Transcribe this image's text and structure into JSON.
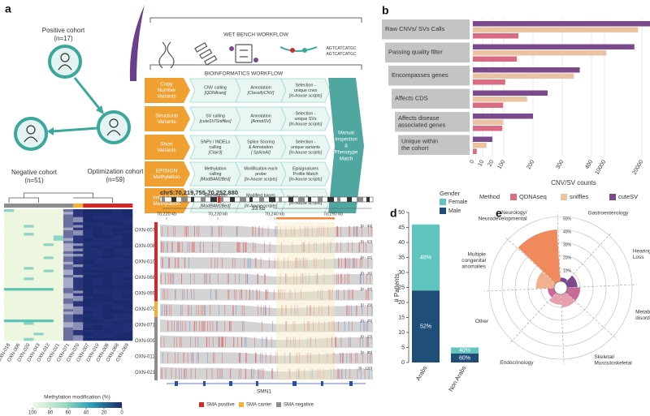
{
  "panel_a": {
    "label": "a",
    "cohorts": [
      {
        "name": "Positive cohort",
        "n": "(n=17)"
      },
      {
        "name": "Negative cohort",
        "n": "(n=51)"
      },
      {
        "name": "Optimization cohort",
        "n": "(n=59)"
      }
    ],
    "wet_bench": "WET BENCH WORKFLOW",
    "sequence": [
      "AGTCATCATGC",
      "AGTCATCATGC"
    ],
    "bioinformatics": "BIOINFORMATICS WORKFLOW",
    "rows": [
      {
        "name": [
          "Copy",
          "Number",
          "Variants"
        ],
        "steps": [
          [
            "CNV calling",
            "[QDNAseq]"
          ],
          [
            "Annotation",
            "[ClassifyCNV]"
          ],
          [
            "Selection -",
            "unique cnvs",
            "[In-house scripts]"
          ]
        ]
      },
      {
        "name": [
          "Structural",
          "Variants"
        ],
        "steps": [
          [
            "SV calling",
            "[cuteSV/Sniffles]"
          ],
          [
            "Annotation",
            "[AnnotSV]"
          ],
          [
            "Selection -",
            "unique SVs",
            "[In-house scripts]"
          ]
        ]
      },
      {
        "name": [
          "Short",
          "Variants"
        ],
        "steps": [
          [
            "SNPs / INDELs",
            "calling",
            "[Clair3]"
          ],
          [
            "Splice Scoring",
            "& Annotation",
            "[ SpliceAI]"
          ],
          [
            "Selection -",
            "unique variants",
            "[In-house scripts]"
          ]
        ]
      },
      {
        "name": [
          "EPISIGN",
          "Methylation"
        ],
        "steps": [
          [
            "Methylation",
            "calling",
            "[ModBAM2Bed]"
          ],
          [
            "Modification each",
            "probe",
            "[In-house scripts]"
          ],
          [
            "Episignatures",
            "Profile Match",
            "[In-house scripts]"
          ]
        ]
      },
      {
        "name": [
          "ImD & SMN",
          "Methylation"
        ],
        "steps": [
          [
            "Methylation",
            "calling",
            "[ModBAM2Bed]"
          ],
          [
            "Modified bases",
            "within SMN1 region",
            "[In-house scripts]"
          ],
          [
            "SMN1 profile match",
            "[In-house scripts]"
          ]
        ]
      }
    ],
    "final": [
      "Manual",
      "Inspection",
      "&",
      "Phenotype",
      "Match"
    ]
  },
  "panel_c": {
    "label": "c",
    "heatmap_samples": [
      {
        "name": "OXN-018",
        "status": "SMA negative"
      },
      {
        "name": "OXN-006",
        "status": "SMA negative"
      },
      {
        "name": "OXN-020",
        "status": "SMA negative"
      },
      {
        "name": "OXN-043",
        "status": "SMA negative"
      },
      {
        "name": "OXN-012",
        "status": "SMA negative"
      },
      {
        "name": "OXN-021",
        "status": "SMA negative"
      },
      {
        "name": "OXN-071",
        "status": "SMA negative"
      },
      {
        "name": "OXN-070",
        "status": "SMA carrier"
      },
      {
        "name": "OXN-007",
        "status": "SMA positive"
      },
      {
        "name": "OXN-010",
        "status": "SMA positive"
      },
      {
        "name": "OXN-008",
        "status": "SMA positive"
      },
      {
        "name": "OXN-068",
        "status": "SMA positive"
      },
      {
        "name": "OXN-069",
        "status": "SMA positive"
      }
    ],
    "colorbar_label": "Methylation modification (%)",
    "colorbar_ticks": [
      100,
      80,
      60,
      40,
      20,
      0
    ],
    "locus": "chr5:70,219,755-70,252,880",
    "span": "33 kb",
    "positions": [
      "70,220 kb",
      "70,230 kb",
      "70,240 kb",
      "70,250 kb"
    ],
    "tracks": [
      {
        "name": "OXN-007",
        "range": "[0 - 33]",
        "status": "SMA positive"
      },
      {
        "name": "OXN-008",
        "range": "[0 - 63]",
        "status": "SMA positive"
      },
      {
        "name": "OXN-010",
        "range": "[0 - 21]",
        "status": "SMA positive"
      },
      {
        "name": "OXN-068",
        "range": "[0 - 26]",
        "status": "SMA positive"
      },
      {
        "name": "OXN-069",
        "range": "[0 - 23]",
        "status": "SMA positive"
      },
      {
        "name": "OXN-070",
        "range": "[0 - 29]",
        "status": "SMA carrier"
      },
      {
        "name": "OXN-071",
        "range": "[0 - 25]",
        "status": "SMA negative"
      },
      {
        "name": "OXN-009",
        "range": "[0 - 23]",
        "status": "SMA negative"
      },
      {
        "name": "OXN-012",
        "range": "[0 - 80]",
        "status": "SMA negative"
      },
      {
        "name": "OXN-021",
        "range": "[0 - 120]",
        "status": "SMA negative"
      }
    ],
    "gene": "SMN1",
    "status_legend": [
      {
        "name": "SMA positive",
        "color": "#d62828"
      },
      {
        "name": "SMA carrier",
        "color": "#f2b134"
      },
      {
        "name": "SMA negative",
        "color": "#8c8c8c"
      }
    ]
  },
  "chart_data": [
    {
      "type": "bar",
      "label": "b",
      "categories": [
        [
          "Raw CNVs/ SVs Calls"
        ],
        [
          "Passing quality filter"
        ],
        [
          "Encompasses genes"
        ],
        [
          "Affects CDS"
        ],
        [
          "Affects disease",
          "associated genes"
        ],
        [
          "Unique within",
          "the cohort"
        ]
      ],
      "series": [
        {
          "name": "QDNAseq",
          "color": "#d96b82",
          "values": [
            150,
            145,
            105,
            95,
            90,
            4
          ]
        },
        {
          "name": "sniffles",
          "color": "#eac4a2",
          "values": [
            19000,
            10500,
            340,
            180,
            95,
            14
          ]
        },
        {
          "name": "cuteSV",
          "color": "#7b4a8c",
          "values": [
            23000,
            18000,
            360,
            250,
            200,
            20
          ]
        }
      ],
      "xsegments": [
        [
          0,
          20
        ],
        [
          100,
          400
        ],
        [
          10000,
          30000
        ]
      ],
      "xticks": [
        0,
        10,
        20,
        100,
        200,
        300,
        400,
        10000,
        20000,
        30000
      ],
      "xlabel": "CNV/SV counts",
      "legend_title": "Method",
      "grid": true
    },
    {
      "type": "stacked_bar",
      "label": "d",
      "categories": [
        "Arabs",
        "Non Arabs"
      ],
      "series": [
        {
          "name": "Male",
          "color": "#1f4e79",
          "values": [
            24,
            3
          ],
          "shares": [
            "52%",
            "60%"
          ]
        },
        {
          "name": "Female",
          "color": "#5ec6bf",
          "values": [
            22,
            2
          ],
          "shares": [
            "48%",
            "40%"
          ]
        }
      ],
      "ylabel": "# Patients",
      "ylim": [
        0,
        50
      ],
      "yticks": [
        0,
        5,
        10,
        15,
        20,
        25,
        30,
        35,
        40,
        45,
        50
      ],
      "legend_title": "Gender"
    },
    {
      "type": "polar_bar",
      "label": "e",
      "categories": [
        [
          "Neurology/",
          "Neurodevelopmental"
        ],
        [
          "Gastroenterology"
        ],
        [
          "Hearing",
          "Loss"
        ],
        [
          "Metabolic",
          "disorders"
        ],
        [
          "Skeletal/",
          "Musculoskeletal"
        ],
        [
          "Endocrinology"
        ],
        [
          "Other"
        ],
        [
          "Multiple",
          "congenital",
          "anomalies"
        ]
      ],
      "values": [
        40,
        3,
        8,
        10,
        10,
        8,
        5,
        14
      ],
      "colors": [
        "#f08a5d",
        "#7b4a8c",
        "#7b4a8c",
        "#c86b98",
        "#e8a0b0",
        "#e8a0b0",
        "#c86b98",
        "#f2b08f"
      ],
      "rlim": [
        0,
        50
      ],
      "rticks": [
        {
          "value": 10,
          "label": "10%"
        },
        {
          "value": 20,
          "label": "20%"
        },
        {
          "value": 30,
          "label": "30%"
        },
        {
          "value": 40,
          "label": "40%"
        },
        {
          "value": 50,
          "label": "50%"
        }
      ]
    }
  ]
}
